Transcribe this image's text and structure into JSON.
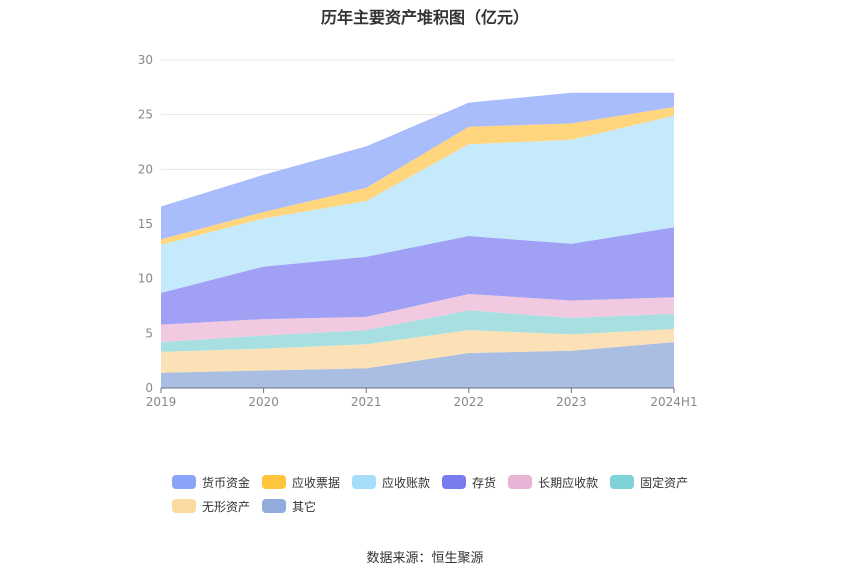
{
  "chart_data": {
    "type": "area",
    "stacked": true,
    "title": "历年主要资产堆积图（亿元）",
    "x": [
      "2019",
      "2020",
      "2021",
      "2022",
      "2023",
      "2024H1"
    ],
    "ylim": [
      0,
      30
    ],
    "yticks": [
      0,
      5,
      10,
      15,
      20,
      25,
      30
    ],
    "grid": true,
    "legend_position": "bottom",
    "series": [
      {
        "name": "其它",
        "color": "#A9BEE2",
        "values": [
          1.4,
          1.6,
          1.8,
          3.2,
          3.4,
          4.2
        ]
      },
      {
        "name": "无形资产",
        "color": "#FCE1B6",
        "values": [
          1.9,
          2.0,
          2.2,
          2.1,
          1.5,
          1.2
        ]
      },
      {
        "name": "固定资产",
        "color": "#A8E0E2",
        "values": [
          0.9,
          1.2,
          1.3,
          1.8,
          1.5,
          1.4
        ]
      },
      {
        "name": "长期应收款",
        "color": "#F1C9E1",
        "values": [
          1.6,
          1.5,
          1.2,
          1.5,
          1.6,
          1.5
        ]
      },
      {
        "name": "存货",
        "color": "#A0A0F5",
        "values": [
          2.9,
          4.8,
          5.5,
          5.3,
          5.2,
          6.4
        ]
      },
      {
        "name": "应收账款",
        "color": "#C5EAFB",
        "values": [
          4.4,
          4.4,
          5.1,
          8.4,
          9.5,
          10.2
        ]
      },
      {
        "name": "应收票据",
        "color": "#FFD57E",
        "values": [
          0.5,
          0.6,
          1.2,
          1.6,
          1.5,
          0.8
        ]
      },
      {
        "name": "货币资金",
        "color": "#A9BCFB",
        "values": [
          3.0,
          3.4,
          3.8,
          2.2,
          2.8,
          1.3
        ]
      }
    ]
  },
  "legend": [
    {
      "label": "货币资金",
      "color": "#8AA4F8"
    },
    {
      "label": "应收票据",
      "color": "#FFC53D"
    },
    {
      "label": "应收账款",
      "color": "#A6DDFA"
    },
    {
      "label": "存货",
      "color": "#7B7BF0"
    },
    {
      "label": "长期应收款",
      "color": "#E9B5D6"
    },
    {
      "label": "固定资产",
      "color": "#7ED3D6"
    },
    {
      "label": "无形资产",
      "color": "#FCD9A0"
    },
    {
      "label": "其它",
      "color": "#8FACDC"
    }
  ],
  "source": "数据来源：恒生聚源"
}
